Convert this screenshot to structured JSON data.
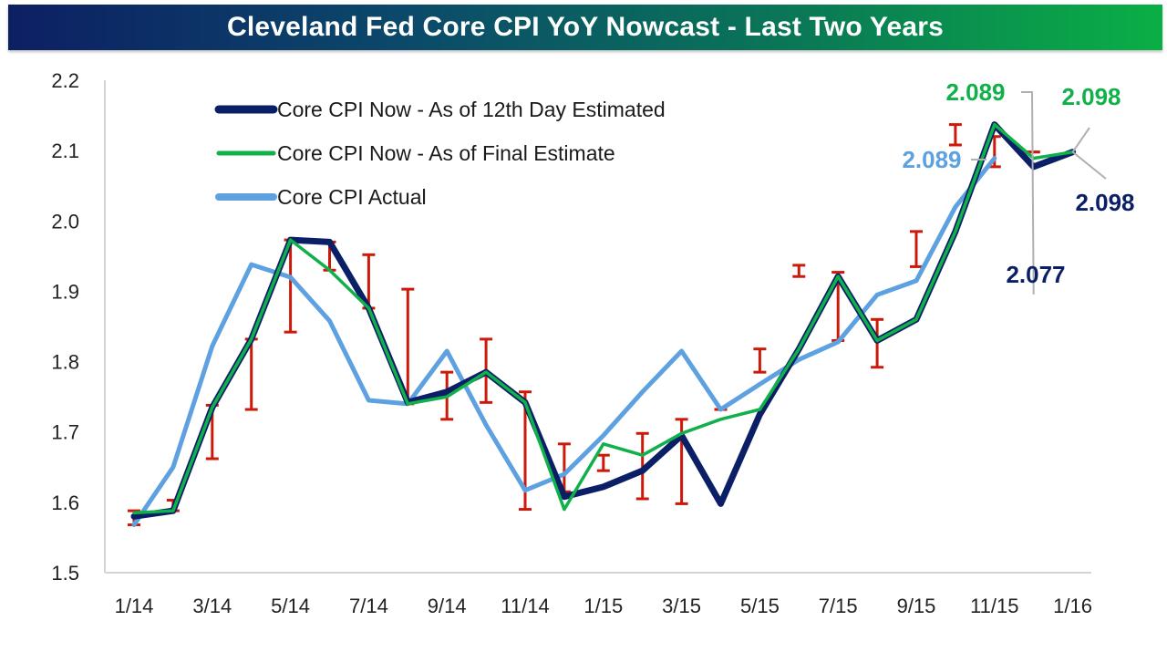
{
  "chart_data": {
    "type": "line",
    "title": "Cleveland Fed Core CPI YoY Nowcast - Last Two Years",
    "xlabel": "",
    "ylabel": "",
    "ylim": [
      1.5,
      2.2
    ],
    "yticks": [
      "1.5",
      "1.6",
      "1.7",
      "1.8",
      "1.9",
      "2.0",
      "2.1",
      "2.2"
    ],
    "grid": false,
    "legend_position": "top-left",
    "x": [
      "1/14",
      "2/14",
      "3/14",
      "4/14",
      "5/14",
      "6/14",
      "7/14",
      "8/14",
      "9/14",
      "10/14",
      "11/14",
      "12/14",
      "1/15",
      "2/15",
      "3/15",
      "4/15",
      "5/15",
      "6/15",
      "7/15",
      "8/15",
      "9/15",
      "10/15",
      "11/15",
      "12/15",
      "1/16"
    ],
    "xtick_labels": [
      "1/14",
      "3/14",
      "5/14",
      "7/14",
      "9/14",
      "11/14",
      "1/15",
      "3/15",
      "5/15",
      "7/15",
      "9/15",
      "11/15",
      "1/16"
    ],
    "series": [
      {
        "name": "Core CPI Now - As of 12th Day Estimated",
        "color": "#0b1f66",
        "values": [
          1.58,
          1.588,
          1.735,
          1.832,
          1.973,
          1.97,
          1.876,
          1.742,
          1.757,
          1.785,
          1.742,
          1.608,
          1.622,
          1.645,
          1.695,
          1.598,
          1.725,
          1.818,
          1.921,
          1.83,
          1.86,
          1.985,
          2.137,
          2.077,
          2.098
        ]
      },
      {
        "name": "Core CPI Now - As of Final Estimate",
        "color": "#10b04a",
        "values": [
          1.585,
          1.588,
          1.735,
          1.832,
          1.973,
          1.93,
          1.876,
          1.74,
          1.75,
          1.785,
          1.742,
          1.59,
          1.683,
          1.667,
          1.698,
          1.718,
          1.732,
          1.818,
          1.921,
          1.83,
          1.86,
          1.985,
          2.137,
          2.089,
          2.098
        ]
      },
      {
        "name": "Core CPI Actual",
        "color": "#5ea1e0",
        "values": [
          1.568,
          1.65,
          1.822,
          1.938,
          1.92,
          1.858,
          1.745,
          1.74,
          1.815,
          1.71,
          1.617,
          1.64,
          1.695,
          1.757,
          1.815,
          1.732,
          1.768,
          1.803,
          1.828,
          1.895,
          1.915,
          2.02,
          2.089,
          null,
          null
        ]
      }
    ],
    "error_bars": {
      "color": "#cc1a0a",
      "low": [
        1.568,
        1.588,
        1.662,
        1.732,
        1.842,
        1.93,
        1.876,
        1.74,
        1.718,
        1.742,
        1.59,
        1.615,
        1.645,
        1.605,
        1.598,
        1.732,
        1.785,
        1.921,
        1.83,
        1.792,
        1.935,
        2.108,
        2.077,
        2.098,
        null
      ],
      "high": [
        1.588,
        1.603,
        1.738,
        1.832,
        1.973,
        1.97,
        1.952,
        1.903,
        1.785,
        1.832,
        1.757,
        1.683,
        1.667,
        1.698,
        1.718,
        1.732,
        1.818,
        1.937,
        1.927,
        1.86,
        1.985,
        2.137,
        2.12,
        2.098,
        null
      ]
    },
    "annotations": [
      {
        "text": "2.089",
        "series": "Core CPI Now - As of Final Estimate",
        "point": "12/15",
        "color": "#10b04a"
      },
      {
        "text": "2.098",
        "series": "Core CPI Now - As of Final Estimate",
        "point": "1/16",
        "color": "#10b04a"
      },
      {
        "text": "2.089",
        "series": "Core CPI Actual",
        "point": "11/15",
        "color": "#5ea1e0"
      },
      {
        "text": "2.077",
        "series": "Core CPI Now - As of 12th Day Estimated",
        "point": "12/15",
        "color": "#0b1f66"
      },
      {
        "text": "2.098",
        "series": "Core CPI Now - As of 12th Day Estimated",
        "point": "1/16",
        "color": "#0b1f66"
      }
    ]
  }
}
